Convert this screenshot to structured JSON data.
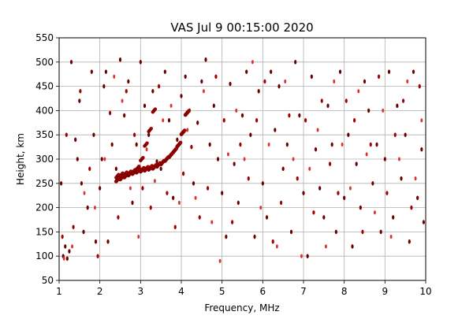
{
  "chart_data": {
    "type": "scatter",
    "title": "VAS Jul  9 00:15:00 2020",
    "xlabel": "Frequency, MHz",
    "ylabel": "Height, km",
    "xlim": [
      1,
      10
    ],
    "ylim": [
      50,
      550
    ],
    "x_ticks": [
      1,
      2,
      3,
      4,
      5,
      6,
      7,
      8,
      9,
      10
    ],
    "y_ticks": [
      50,
      100,
      150,
      200,
      250,
      300,
      350,
      400,
      450,
      500,
      550
    ],
    "grid": true,
    "legend": "none",
    "colors": {
      "dark": "#6b0000",
      "mid": "#a00000",
      "bright": "#e03030"
    },
    "trace_x_trace": [
      2.4,
      2.5,
      2.6,
      2.7,
      2.8,
      2.9,
      3.0,
      3.1,
      3.2,
      3.3,
      3.4,
      3.5,
      3.6,
      3.7,
      3.8,
      3.9,
      4.0,
      4.1
    ],
    "trace_y_trace": [
      258,
      262,
      266,
      270,
      273,
      276,
      278,
      280,
      282,
      284,
      288,
      293,
      300,
      308,
      318,
      330,
      355,
      395
    ],
    "trace_x_low": [
      2.4,
      2.5,
      2.6,
      2.7,
      2.8,
      2.9,
      3.0,
      3.1,
      3.2,
      3.3
    ],
    "trace_y_low": [
      265,
      268,
      270,
      272,
      275,
      282,
      300,
      330,
      360,
      400
    ],
    "points_dark": [
      [
        1.05,
        250
      ],
      [
        1.1,
        100
      ],
      [
        1.15,
        120
      ],
      [
        1.2,
        95
      ],
      [
        1.25,
        110
      ],
      [
        1.3,
        500
      ],
      [
        1.4,
        340
      ],
      [
        1.45,
        300
      ],
      [
        1.5,
        420
      ],
      [
        1.55,
        250
      ],
      [
        1.6,
        150
      ],
      [
        1.7,
        200
      ],
      [
        1.8,
        480
      ],
      [
        1.85,
        350
      ],
      [
        1.9,
        130
      ],
      [
        2.0,
        240
      ],
      [
        2.05,
        300
      ],
      [
        2.1,
        450
      ],
      [
        2.15,
        480
      ],
      [
        2.2,
        130
      ],
      [
        2.3,
        330
      ],
      [
        2.4,
        280
      ],
      [
        2.5,
        505
      ],
      [
        2.6,
        390
      ],
      [
        2.7,
        460
      ],
      [
        2.8,
        210
      ],
      [
        2.9,
        330
      ],
      [
        3.0,
        500
      ],
      [
        3.1,
        410
      ],
      [
        3.2,
        350
      ],
      [
        3.3,
        440
      ],
      [
        3.4,
        295
      ],
      [
        3.5,
        280
      ],
      [
        3.6,
        480
      ],
      [
        3.7,
        380
      ],
      [
        3.8,
        220
      ],
      [
        3.9,
        340
      ],
      [
        4.0,
        430
      ],
      [
        4.1,
        470
      ],
      [
        4.2,
        400
      ],
      [
        4.3,
        250
      ],
      [
        4.4,
        375
      ],
      [
        4.5,
        460
      ],
      [
        4.6,
        505
      ],
      [
        4.7,
        330
      ],
      [
        4.8,
        410
      ],
      [
        4.9,
        300
      ],
      [
        5.0,
        230
      ],
      [
        5.1,
        140
      ],
      [
        5.2,
        455
      ],
      [
        5.3,
        290
      ],
      [
        5.4,
        210
      ],
      [
        5.5,
        390
      ],
      [
        5.6,
        480
      ],
      [
        5.7,
        350
      ],
      [
        5.8,
        140
      ],
      [
        5.9,
        440
      ],
      [
        6.0,
        250
      ],
      [
        6.1,
        180
      ],
      [
        6.2,
        480
      ],
      [
        6.3,
        360
      ],
      [
        6.4,
        450
      ],
      [
        6.5,
        280
      ],
      [
        6.6,
        330
      ],
      [
        6.7,
        150
      ],
      [
        6.8,
        500
      ],
      [
        6.9,
        390
      ],
      [
        7.0,
        230
      ],
      [
        7.1,
        100
      ],
      [
        7.2,
        470
      ],
      [
        7.3,
        320
      ],
      [
        7.4,
        240
      ],
      [
        7.5,
        180
      ],
      [
        7.6,
        410
      ],
      [
        7.7,
        330
      ],
      [
        7.8,
        150
      ],
      [
        7.9,
        480
      ],
      [
        8.0,
        220
      ],
      [
        8.1,
        350
      ],
      [
        8.2,
        120
      ],
      [
        8.3,
        290
      ],
      [
        8.4,
        200
      ],
      [
        8.5,
        460
      ],
      [
        8.6,
        400
      ],
      [
        8.7,
        250
      ],
      [
        8.8,
        330
      ],
      [
        8.9,
        150
      ],
      [
        9.0,
        300
      ],
      [
        9.1,
        480
      ],
      [
        9.2,
        180
      ],
      [
        9.3,
        410
      ],
      [
        9.4,
        260
      ],
      [
        9.5,
        350
      ],
      [
        9.6,
        130
      ],
      [
        9.7,
        480
      ],
      [
        9.8,
        220
      ],
      [
        9.9,
        320
      ],
      [
        9.95,
        170
      ]
    ],
    "points_mid": [
      [
        1.08,
        140
      ],
      [
        1.18,
        350
      ],
      [
        1.35,
        160
      ],
      [
        1.52,
        440
      ],
      [
        1.75,
        280
      ],
      [
        1.95,
        100
      ],
      [
        2.25,
        395
      ],
      [
        2.45,
        180
      ],
      [
        2.65,
        440
      ],
      [
        2.85,
        350
      ],
      [
        3.05,
        240
      ],
      [
        3.25,
        200
      ],
      [
        3.45,
        450
      ],
      [
        3.65,
        230
      ],
      [
        3.85,
        160
      ],
      [
        4.05,
        270
      ],
      [
        4.25,
        325
      ],
      [
        4.45,
        180
      ],
      [
        4.65,
        240
      ],
      [
        4.85,
        470
      ],
      [
        5.05,
        380
      ],
      [
        5.25,
        170
      ],
      [
        5.45,
        330
      ],
      [
        5.65,
        260
      ],
      [
        5.85,
        380
      ],
      [
        6.05,
        460
      ],
      [
        6.25,
        130
      ],
      [
        6.45,
        210
      ],
      [
        6.65,
        390
      ],
      [
        6.85,
        260
      ],
      [
        7.05,
        380
      ],
      [
        7.25,
        190
      ],
      [
        7.45,
        420
      ],
      [
        7.65,
        290
      ],
      [
        7.85,
        230
      ],
      [
        8.05,
        420
      ],
      [
        8.25,
        380
      ],
      [
        8.45,
        150
      ],
      [
        8.65,
        330
      ],
      [
        8.85,
        470
      ],
      [
        9.05,
        230
      ],
      [
        9.25,
        350
      ],
      [
        9.45,
        420
      ],
      [
        9.65,
        200
      ],
      [
        9.85,
        450
      ]
    ],
    "points_bright": [
      [
        1.12,
        95
      ],
      [
        1.32,
        120
      ],
      [
        1.62,
        230
      ],
      [
        1.88,
        200
      ],
      [
        2.12,
        300
      ],
      [
        2.35,
        470
      ],
      [
        2.55,
        420
      ],
      [
        2.75,
        240
      ],
      [
        2.95,
        140
      ],
      [
        3.15,
        320
      ],
      [
        3.35,
        255
      ],
      [
        3.55,
        380
      ],
      [
        3.75,
        410
      ],
      [
        3.95,
        210
      ],
      [
        4.15,
        360
      ],
      [
        4.35,
        220
      ],
      [
        4.55,
        440
      ],
      [
        4.75,
        170
      ],
      [
        4.95,
        90
      ],
      [
        5.15,
        310
      ],
      [
        5.35,
        400
      ],
      [
        5.55,
        300
      ],
      [
        5.75,
        500
      ],
      [
        5.95,
        200
      ],
      [
        6.15,
        330
      ],
      [
        6.35,
        120
      ],
      [
        6.55,
        460
      ],
      [
        6.75,
        300
      ],
      [
        6.95,
        100
      ],
      [
        7.15,
        280
      ],
      [
        7.35,
        360
      ],
      [
        7.55,
        120
      ],
      [
        7.75,
        460
      ],
      [
        7.95,
        330
      ],
      [
        8.15,
        240
      ],
      [
        8.35,
        440
      ],
      [
        8.55,
        310
      ],
      [
        8.75,
        190
      ],
      [
        8.95,
        400
      ],
      [
        9.15,
        140
      ],
      [
        9.35,
        300
      ],
      [
        9.55,
        460
      ],
      [
        9.75,
        260
      ],
      [
        9.9,
        380
      ]
    ]
  }
}
